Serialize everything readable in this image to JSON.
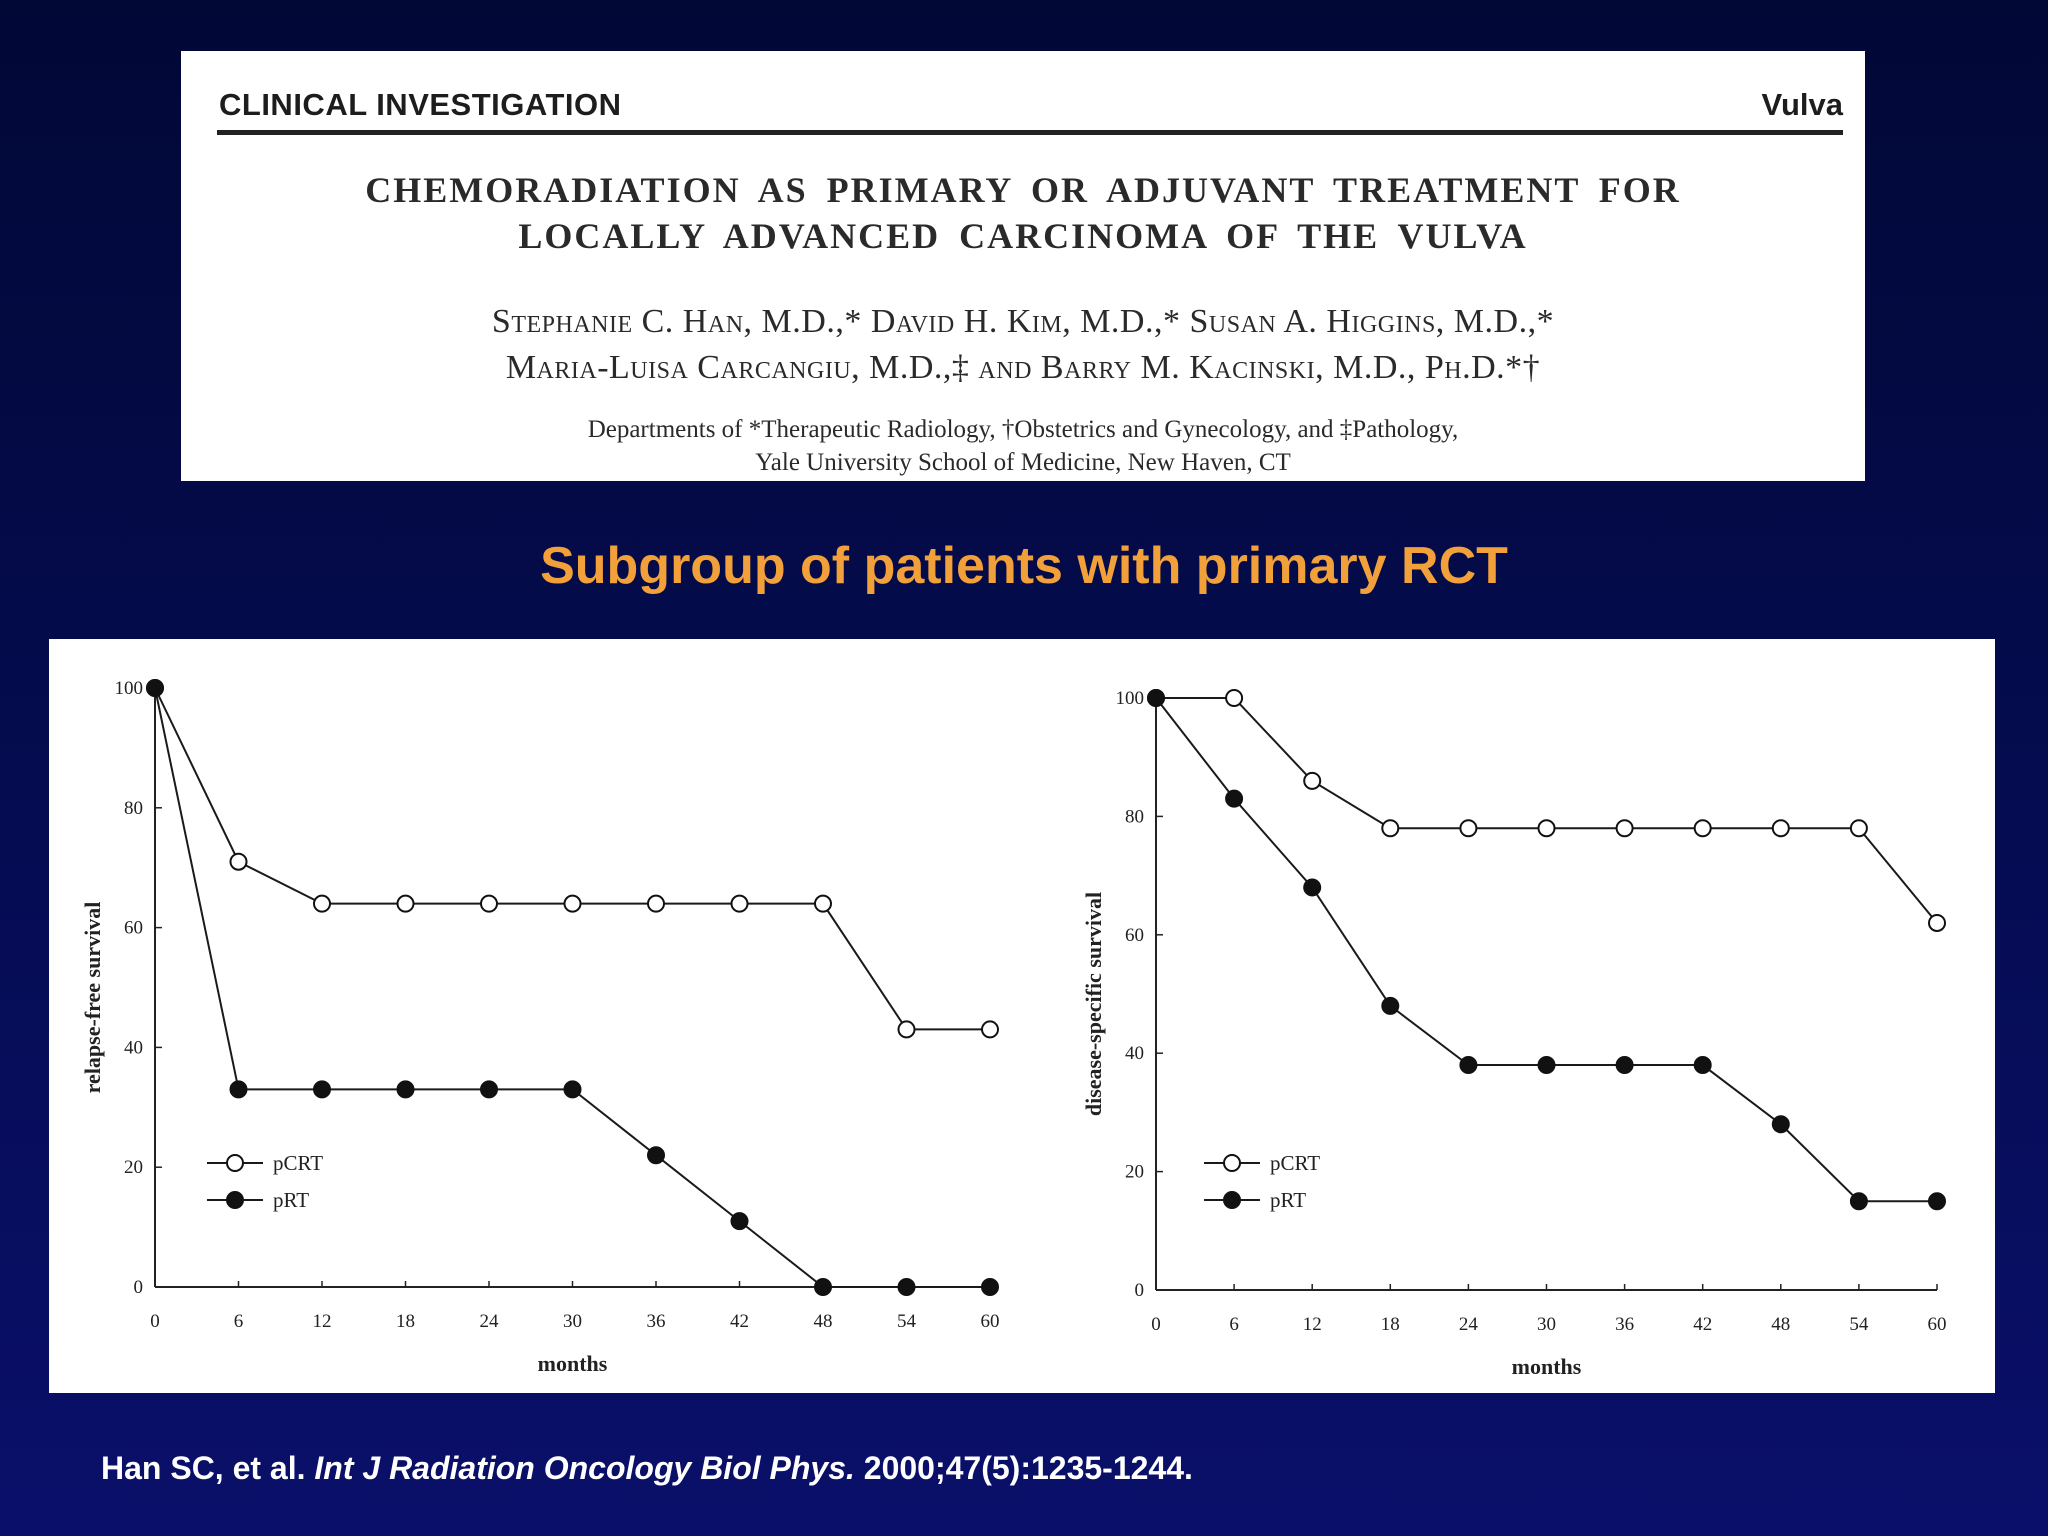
{
  "paper": {
    "section_label": "CLINICAL INVESTIGATION",
    "section_topic": "Vulva",
    "title_line1": "CHEMORADIATION AS PRIMARY OR ADJUVANT TREATMENT FOR",
    "title_line2": "LOCALLY ADVANCED CARCINOMA OF THE VULVA",
    "authors_line1": "Stephanie C. Han, M.D.,* David H. Kim, M.D.,* Susan A. Higgins, M.D.,*",
    "authors_line2": "Maria-Luisa Carcangiu, M.D.,‡ and Barry M. Kacinski, M.D., Ph.D.*†",
    "affil_line1": "Departments of *Therapeutic Radiology, †Obstetrics and Gynecology, and ‡Pathology,",
    "affil_line2": "Yale University School of Medicine, New Haven, CT"
  },
  "subtitle": "Subgroup of patients with primary RCT",
  "citation": {
    "authors": "Han SC, et al. ",
    "journal": "Int J Radiation Oncology Biol Phys.",
    "ref": " 2000;47(5):1235-1244."
  },
  "chart_data": [
    {
      "type": "line",
      "xlabel": "months",
      "ylabel": "relapse-free survival",
      "x": [
        0,
        6,
        12,
        18,
        24,
        30,
        36,
        42,
        48,
        54,
        60
      ],
      "xticks": [
        "0",
        "6",
        "12",
        "18",
        "24",
        "30",
        "36",
        "42",
        "48",
        "54",
        "60"
      ],
      "yticks": [
        "0",
        "20",
        "40",
        "60",
        "80",
        "100"
      ],
      "xlim": [
        0,
        60
      ],
      "ylim": [
        0,
        100
      ],
      "legend": "bottom-left",
      "series": [
        {
          "name": "pCRT",
          "marker": "open-circle",
          "values": [
            100,
            71,
            64,
            64,
            64,
            64,
            64,
            64,
            64,
            43,
            43
          ]
        },
        {
          "name": "pRT",
          "marker": "filled-circle",
          "values": [
            100,
            33,
            33,
            33,
            33,
            33,
            22,
            11,
            0,
            0,
            0
          ]
        }
      ]
    },
    {
      "type": "line",
      "xlabel": "months",
      "ylabel": "disease-specific survival",
      "x": [
        0,
        6,
        12,
        18,
        24,
        30,
        36,
        42,
        48,
        54,
        60
      ],
      "xticks": [
        "0",
        "6",
        "12",
        "18",
        "24",
        "30",
        "36",
        "42",
        "48",
        "54",
        "60"
      ],
      "yticks": [
        "0",
        "20",
        "40",
        "60",
        "80",
        "100"
      ],
      "xlim": [
        0,
        60
      ],
      "ylim": [
        0,
        100
      ],
      "legend": "bottom-left",
      "series": [
        {
          "name": "pCRT",
          "marker": "open-circle",
          "values": [
            100,
            100,
            86,
            78,
            78,
            78,
            78,
            78,
            78,
            78,
            62
          ]
        },
        {
          "name": "pRT",
          "marker": "filled-circle",
          "values": [
            100,
            83,
            68,
            48,
            38,
            38,
            38,
            38,
            28,
            15,
            15
          ]
        }
      ]
    }
  ]
}
